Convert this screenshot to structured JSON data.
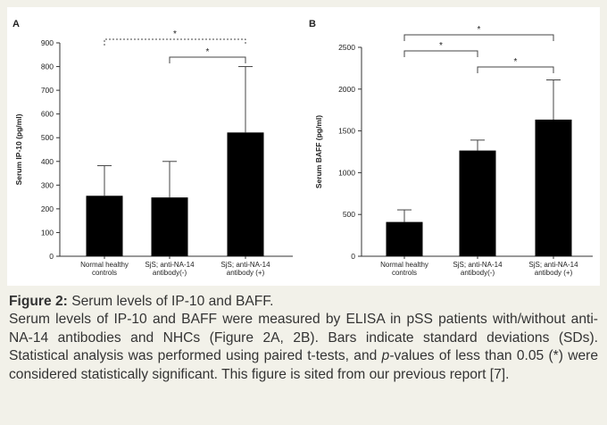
{
  "chart_data": [
    {
      "panel": "A",
      "type": "bar",
      "categories": [
        [
          "Normal healthy",
          "controls"
        ],
        [
          "SjS; anti-NA-14",
          "antibody(-)"
        ],
        [
          "SjS; anti-NA-14",
          "antibody (+)"
        ]
      ],
      "values": [
        255,
        248,
        522
      ],
      "error_bars": [
        127,
        152,
        278
      ],
      "ylabel": "Serum IP-10 (pg/ml)",
      "ylim": [
        0,
        900
      ],
      "yticks": [
        "0",
        "100",
        "200",
        "300",
        "400",
        "500",
        "600",
        "700",
        "800",
        "900"
      ],
      "significance": [
        {
          "from": 0,
          "to": 2,
          "label": "*"
        },
        {
          "from": 1,
          "to": 2,
          "label": "*"
        }
      ]
    },
    {
      "panel": "B",
      "type": "bar",
      "categories": [
        [
          "Normal healthy",
          "controls"
        ],
        [
          "SjS; anti-NA-14",
          "antibody(-)"
        ],
        [
          "SjS; anti-NA-14",
          "antibody (+)"
        ]
      ],
      "values": [
        410,
        1265,
        1635
      ],
      "error_bars": [
        145,
        125,
        475
      ],
      "ylabel": "Serum BAFF (pg/ml)",
      "ylim": [
        0,
        2500
      ],
      "yticks": [
        "0",
        "500",
        "1000",
        "1500",
        "2000",
        "2500"
      ],
      "significance": [
        {
          "from": 0,
          "to": 2,
          "label": "*"
        },
        {
          "from": 0,
          "to": 1,
          "label": "*"
        },
        {
          "from": 1,
          "to": 2,
          "label": "*"
        }
      ]
    }
  ],
  "caption": {
    "title_bold": "Figure 2:",
    "title_rest": " Serum levels of IP-10 and BAFF.",
    "body_1": "Serum levels of IP-10 and BAFF were measured by ELISA in pSS patients with/without anti-NA-14 antibodies and NHCs (Figure 2A, 2B). Bars indicate standard deviations (SDs). Statistical analysis was performed using paired t-tests, and ",
    "p_italic": "p",
    "body_2": "-values of less than 0.05 (*) were considered statistically significant. This figure is sited from our previous report [7]."
  },
  "colors": {
    "bar": "#000000",
    "background": "#f2f1e9",
    "panel": "#ffffff",
    "axis": "#333333",
    "bracket": "#444444"
  }
}
